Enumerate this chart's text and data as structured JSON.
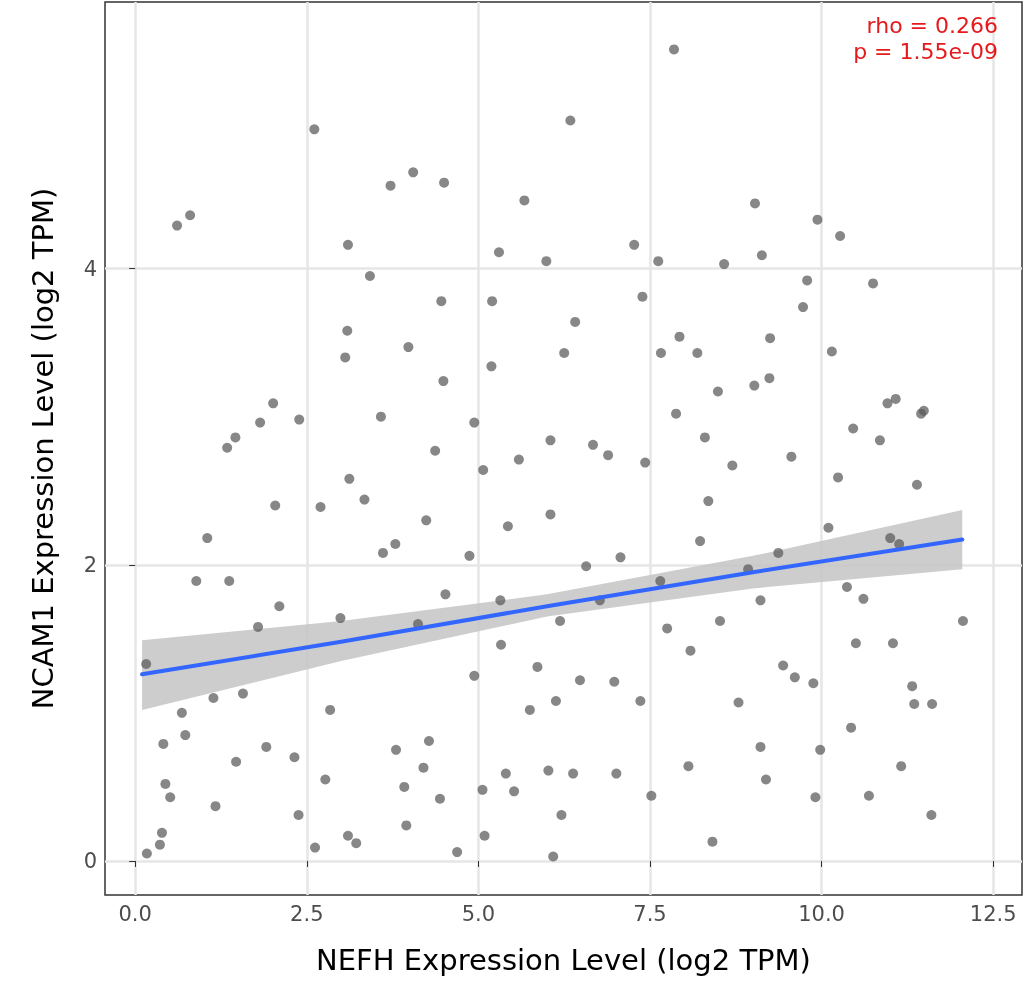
{
  "chart_data": {
    "type": "scatter",
    "xlabel": "NEFH Expression Level (log2 TPM)",
    "ylabel": "NCAM1 Expression Level (log2 TPM)",
    "annotations": [
      "rho = 0.266",
      "p = 1.55e-09"
    ],
    "xlim": [
      -0.44,
      12.92
    ],
    "ylim": [
      -0.23,
      5.8
    ],
    "xticks": [
      {
        "value": 0,
        "label": "0.0"
      },
      {
        "value": 2.5,
        "label": "2.5"
      },
      {
        "value": 5,
        "label": "5.0"
      },
      {
        "value": 7.5,
        "label": "7.5"
      },
      {
        "value": 10,
        "label": "10.0"
      },
      {
        "value": 12.5,
        "label": "12.5"
      }
    ],
    "yticks": [
      0,
      2,
      4
    ],
    "grid": true,
    "marker": "circle",
    "series": [
      {
        "color": "#595959",
        "x": [
          0.16,
          0.17,
          0.36,
          0.39,
          0.41,
          0.44,
          0.51,
          0.61,
          0.8,
          0.68,
          0.73,
          0.89,
          1.05,
          1.14,
          1.17,
          1.34,
          1.37,
          1.46,
          1.57,
          1.47,
          1.79,
          1.82,
          2.01,
          2.04,
          2.1,
          1.91,
          2.32,
          2.39,
          2.38,
          2.61,
          2.62,
          2.7,
          2.77,
          2.84,
          2.99,
          3.06,
          3.09,
          3.1,
          3.12,
          3.1,
          3.22,
          3.34,
          3.42,
          3.58,
          3.61,
          3.72,
          3.79,
          3.8,
          3.92,
          3.95,
          3.98,
          4.05,
          4.12,
          4.2,
          4.24,
          4.28,
          4.37,
          4.46,
          4.5,
          4.49,
          4.44,
          4.52,
          4.69,
          4.87,
          4.94,
          4.94,
          5.06,
          5.07,
          5.09,
          5.19,
          5.2,
          5.3,
          5.33,
          5.4,
          5.43,
          5.52,
          5.59,
          5.67,
          5.75,
          5.86,
          5.99,
          6.05,
          6.05,
          6.02,
          6.09,
          6.13,
          6.21,
          6.25,
          6.34,
          6.41,
          6.38,
          6.57,
          6.67,
          6.89,
          6.98,
          7.01,
          7.07,
          7.27,
          7.39,
          7.43,
          7.52,
          7.62,
          7.66,
          7.75,
          7.85,
          7.88,
          7.93,
          8.06,
          8.19,
          8.3,
          8.41,
          8.49,
          8.58,
          8.7,
          8.79,
          8.93,
          9.02,
          9.03,
          9.11,
          9.13,
          9.19,
          9.24,
          9.25,
          9.37,
          9.44,
          9.56,
          9.61,
          9.73,
          9.79,
          9.88,
          9.91,
          9.94,
          9.98,
          10.1,
          10.15,
          10.24,
          10.27,
          10.37,
          10.43,
          10.46,
          10.5,
          10.61,
          10.69,
          10.75,
          10.85,
          10.96,
          11.0,
          11.04,
          11.08,
          11.13,
          11.16,
          11.32,
          11.39,
          11.35,
          11.45,
          11.49,
          11.6,
          11.61,
          12.06,
          6.77,
          7.36,
          8.23,
          8.52,
          7.65,
          6.19,
          5.32,
          8.35,
          8.09,
          6.48,
          9.11
        ],
        "values": [
          1.33,
          0.05,
          0.11,
          0.19,
          0.79,
          0.52,
          0.43,
          4.29,
          4.36,
          1.0,
          0.85,
          1.89,
          2.18,
          1.1,
          0.37,
          2.79,
          1.89,
          2.86,
          1.13,
          0.67,
          1.58,
          2.96,
          3.09,
          2.4,
          1.72,
          0.77,
          0.7,
          2.98,
          0.31,
          4.94,
          0.09,
          2.39,
          0.55,
          1.02,
          1.64,
          3.4,
          3.58,
          4.16,
          2.58,
          0.17,
          0.12,
          2.44,
          3.95,
          3.0,
          2.08,
          4.56,
          2.14,
          0.75,
          0.5,
          0.24,
          3.47,
          4.65,
          1.6,
          0.63,
          2.3,
          0.81,
          2.77,
          3.78,
          4.58,
          3.24,
          0.42,
          1.8,
          0.06,
          2.06,
          2.96,
          1.25,
          0.48,
          2.64,
          0.17,
          3.34,
          3.78,
          4.11,
          1.46,
          0.59,
          2.26,
          0.47,
          2.71,
          4.46,
          1.02,
          1.31,
          4.05,
          2.84,
          2.34,
          0.61,
          0.03,
          1.08,
          0.31,
          3.43,
          5.0,
          3.64,
          0.59,
          1.99,
          2.81,
          2.74,
          1.21,
          0.59,
          2.05,
          4.16,
          3.81,
          2.69,
          0.44,
          4.05,
          3.43,
          1.57,
          5.48,
          3.02,
          3.54,
          0.64,
          3.43,
          2.86,
          0.13,
          3.17,
          4.03,
          2.67,
          1.07,
          1.97,
          3.21,
          4.44,
          0.77,
          4.09,
          0.55,
          3.26,
          3.53,
          2.08,
          1.32,
          2.73,
          1.24,
          3.74,
          3.92,
          1.2,
          0.43,
          4.33,
          0.75,
          2.25,
          3.44,
          2.59,
          4.22,
          1.85,
          0.9,
          2.92,
          1.47,
          1.77,
          0.44,
          3.9,
          2.84,
          3.09,
          2.18,
          1.47,
          3.12,
          2.14,
          0.64,
          1.18,
          2.54,
          1.06,
          3.02,
          3.04,
          0.31,
          1.06,
          1.62,
          1.76,
          1.08,
          2.16,
          1.62,
          1.89,
          1.62,
          1.76,
          2.43,
          1.42,
          1.22,
          1.76
        ]
      },
      {
        "type": "line",
        "color": "#3366ff",
        "marker": "none",
        "x": [
          0.1,
          3,
          6,
          9,
          12.05
        ],
        "values": [
          1.26,
          1.48,
          1.72,
          1.95,
          2.17
        ],
        "lower": [
          1.02,
          1.35,
          1.65,
          1.84,
          1.97
        ],
        "upper": [
          1.49,
          1.62,
          1.8,
          2.06,
          2.37
        ]
      }
    ]
  }
}
